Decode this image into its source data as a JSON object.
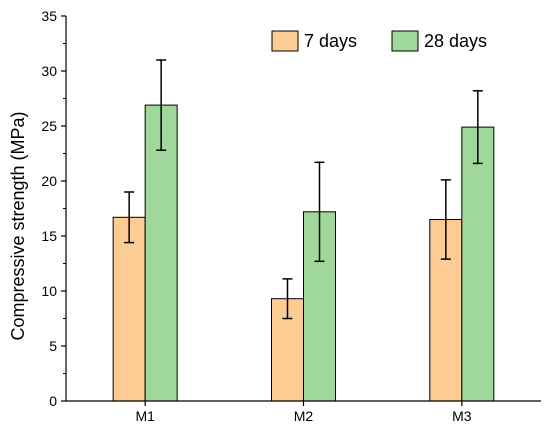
{
  "chart_data": {
    "type": "bar",
    "title": "",
    "xlabel": "",
    "ylabel": "Compressive strength (MPa)",
    "categories": [
      "M1",
      "M2",
      "M3"
    ],
    "ylim": [
      0,
      35
    ],
    "y_ticks": [
      "0",
      "5",
      "10",
      "15",
      "20",
      "25",
      "30",
      "35"
    ],
    "grid": false,
    "legend_position": "top-right",
    "series": [
      {
        "name": "7 days",
        "color": "#FDCB94",
        "values": [
          16.7,
          9.3,
          16.5
        ],
        "error": [
          2.3,
          1.8,
          3.6
        ]
      },
      {
        "name": "28 days",
        "color": "#A0D79A",
        "values": [
          26.9,
          17.2,
          24.9
        ],
        "error": [
          4.1,
          4.5,
          3.3
        ]
      }
    ]
  }
}
